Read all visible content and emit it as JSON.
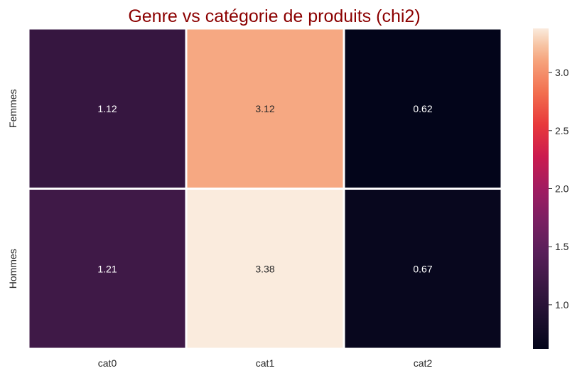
{
  "chart_data": {
    "type": "heatmap",
    "title": "Genre vs catégorie de produits (chi2)",
    "title_color": "#8b0000",
    "x_categories": [
      "cat0",
      "cat1",
      "cat2"
    ],
    "y_categories": [
      "Femmes",
      "Hommes"
    ],
    "values": [
      [
        1.12,
        3.12,
        0.62
      ],
      [
        1.21,
        3.38,
        0.67
      ]
    ],
    "value_labels": [
      [
        "1.12",
        "3.12",
        "0.62"
      ],
      [
        "1.21",
        "3.38",
        "0.67"
      ]
    ],
    "colormap": "rocket",
    "vmin": 0.62,
    "vmax": 3.38,
    "colorbar": {
      "ticks": [
        1.0,
        1.5,
        2.0,
        2.5,
        3.0
      ],
      "tick_labels": [
        "1.0",
        "1.5",
        "2.0",
        "2.5",
        "3.0"
      ]
    },
    "grid": false,
    "cell_separator_color": "#ffffff"
  }
}
